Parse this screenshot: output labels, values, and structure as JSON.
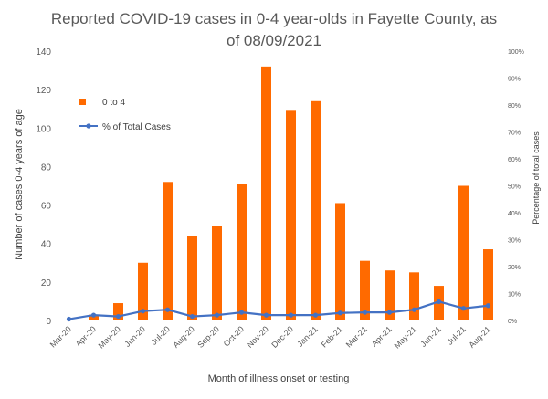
{
  "chart_data": {
    "type": "bar",
    "title_line1": "Reported COVID-19 cases in 0-4 year-olds in Fayette County, as",
    "title_line2": "of 08/09/2021",
    "xlabel": "Month of illness onset or testing",
    "ylabel": "Number of cases 0-4 years of age",
    "y2label": "Percentage of total cases",
    "ylim": [
      0,
      140
    ],
    "y2lim": [
      0,
      100
    ],
    "yticks": [
      0,
      20,
      40,
      60,
      80,
      100,
      120,
      140
    ],
    "y2ticks": [
      "0%",
      "10%",
      "20%",
      "30%",
      "40%",
      "50%",
      "60%",
      "70%",
      "80%",
      "90%",
      "100%"
    ],
    "categories": [
      "Mar-20",
      "Apr-20",
      "May-20",
      "Jun-20",
      "Jul-20",
      "Aug-20",
      "Sep-20",
      "Oct-20",
      "Nov-20",
      "Dec-20",
      "Jan-21",
      "Feb-21",
      "Mar-21",
      "Apr-21",
      "May-21",
      "Jun-21",
      "Jul-21",
      "Aug-21"
    ],
    "series": [
      {
        "name": "0 to 4",
        "kind": "bar",
        "color": "#FF6A00",
        "values": [
          0,
          3,
          9,
          30,
          72,
          44,
          49,
          71,
          132,
          109,
          114,
          61,
          31,
          26,
          25,
          18,
          70,
          37
        ]
      },
      {
        "name": "% of Total Cases",
        "kind": "line",
        "axis": "secondary",
        "color": "#4472C4",
        "values": [
          0.5,
          2.0,
          1.5,
          3.5,
          4.0,
          1.5,
          2.0,
          3.0,
          2.0,
          2.0,
          2.0,
          2.8,
          3.0,
          3.0,
          4.0,
          7.0,
          4.5,
          5.5
        ]
      }
    ],
    "legend_position": "top-left"
  }
}
